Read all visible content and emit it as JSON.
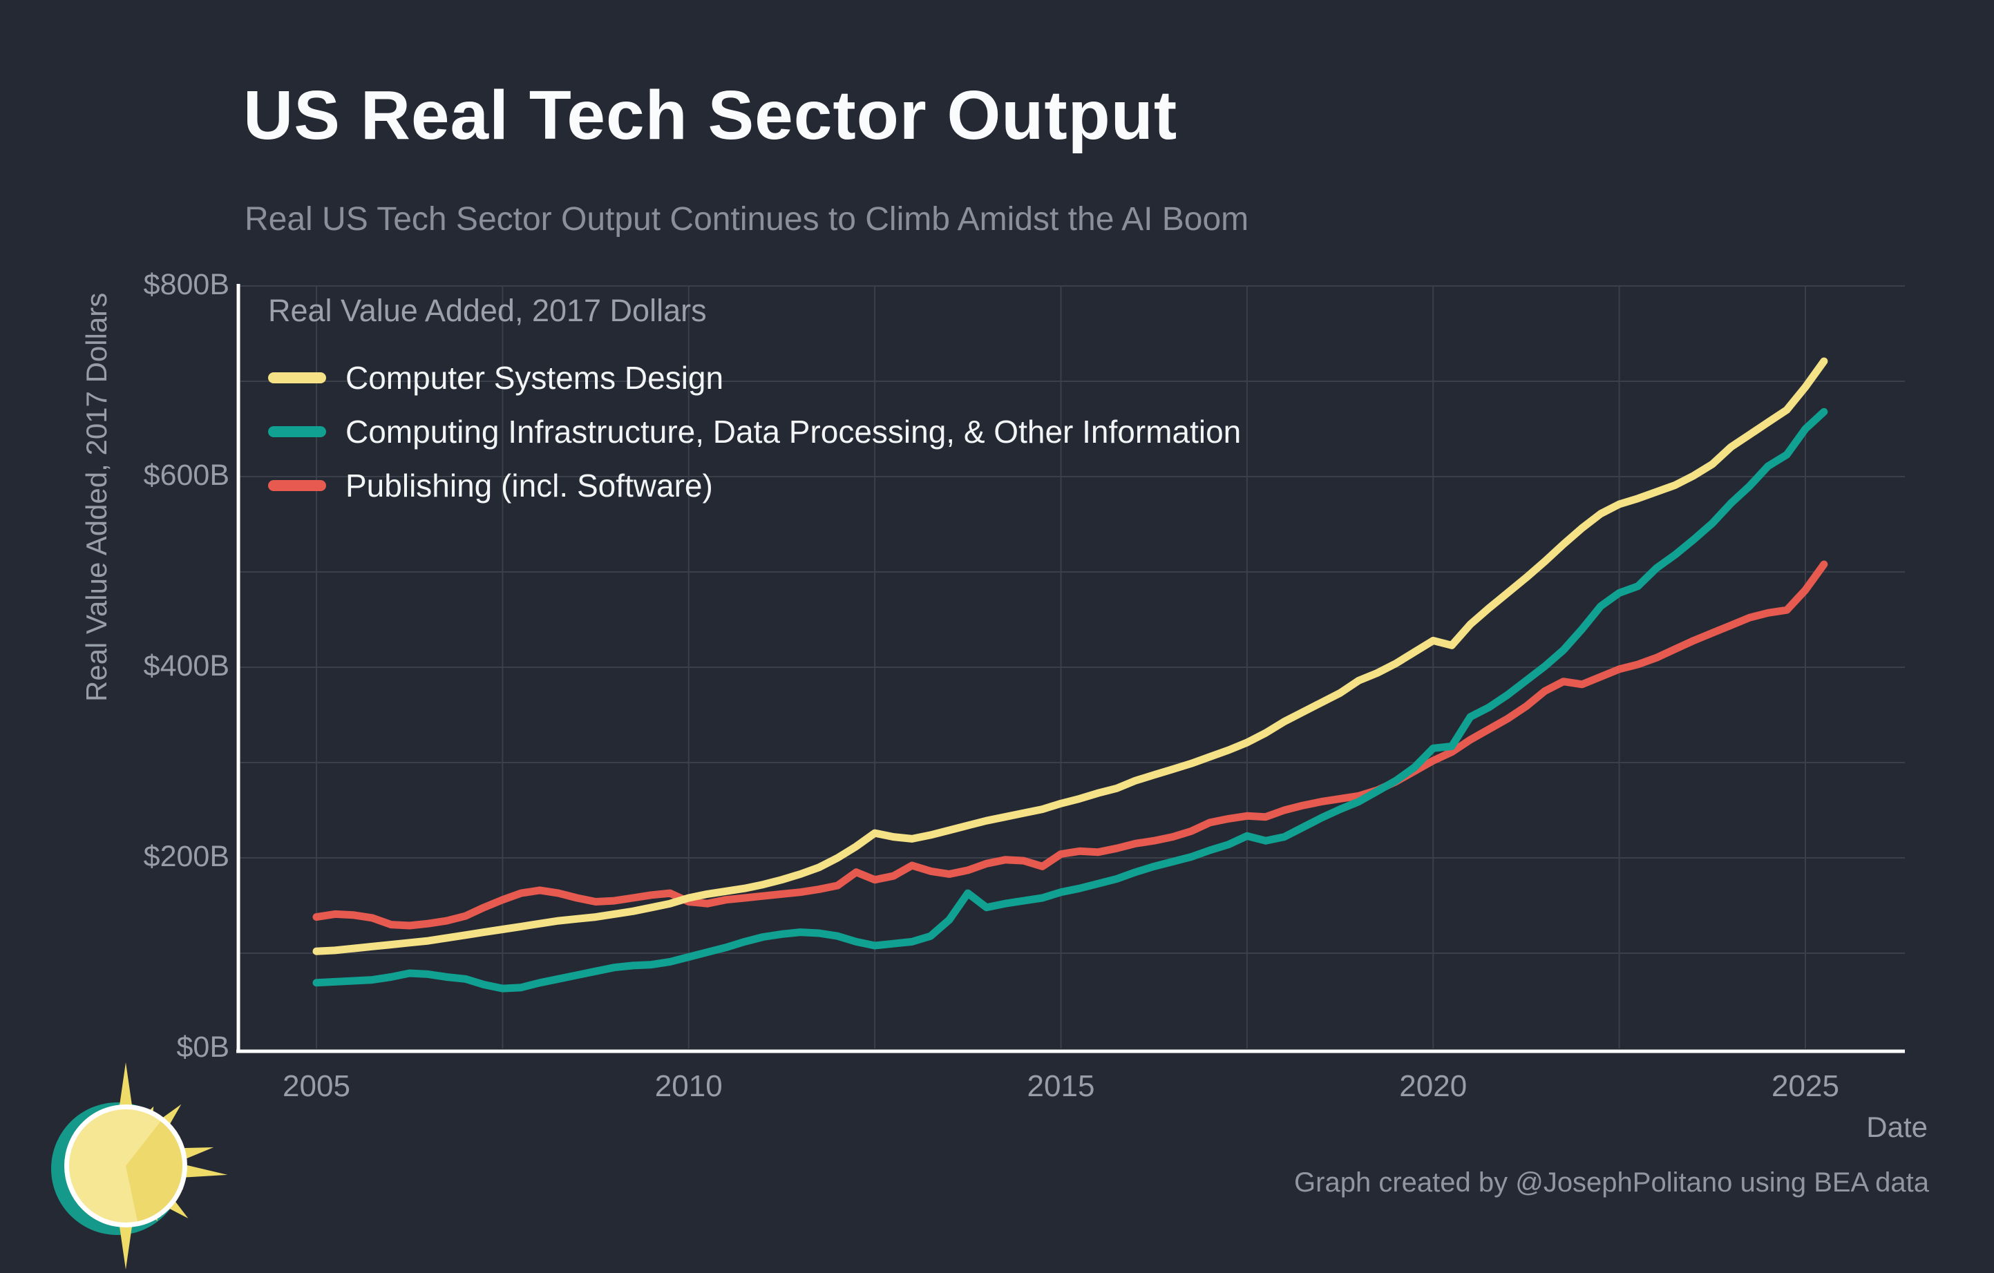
{
  "page": {
    "title": "US Real Tech Sector Output",
    "subtitle": "Real US Tech Sector Output Continues to Climb Amidst the AI Boom",
    "attribution": "Graph created by @JosephPolitano using BEA data"
  },
  "colors": {
    "bg": "#252933",
    "grid": "#3a3f49",
    "axis": "#ffffff",
    "title-color": "#fafbfc",
    "muted-text": "#989ea7",
    "legend-text": "#f2f4f6"
  },
  "logo": {
    "name": "apricitas-sun-logo",
    "crescent_color": "#15998a",
    "ray_color": "#efdb67",
    "ring_color": "#ffffff",
    "disc_color": "#f6e795",
    "wedge_color": "#edd96c"
  },
  "chart_data": {
    "type": "line",
    "title": "US Real Tech Sector Output",
    "subtitle": "Real US Tech Sector Output Continues to Climb Amidst the AI Boom",
    "legend_title": "Real Value Added, 2017 Dollars",
    "legend_position": "top-left-inside",
    "xlabel": "Date",
    "ylabel": "Real Value Added, 2017 Dollars",
    "grid": true,
    "x_start": 2005,
    "x_step": 0.25,
    "x_end": 2025.25,
    "xlim": [
      2003.95,
      2026.4
    ],
    "ylim": [
      0,
      800
    ],
    "x_ticks": [
      2005,
      2010,
      2015,
      2020,
      2025
    ],
    "x_gridlines": [
      2005,
      2007.5,
      2010,
      2012.5,
      2015,
      2017.5,
      2020,
      2022.5,
      2025
    ],
    "y_ticks": [
      {
        "value": 0,
        "label": "$0B"
      },
      {
        "value": 200,
        "label": "$200B"
      },
      {
        "value": 400,
        "label": "$400B"
      },
      {
        "value": 600,
        "label": "$600B"
      },
      {
        "value": 800,
        "label": "$800B"
      }
    ],
    "y_gridlines": [
      100,
      200,
      300,
      400,
      500,
      600,
      700,
      800
    ],
    "units": "billions of 2017 dollars, quarterly",
    "series": [
      {
        "id": "computer-systems-design",
        "name": "Computer Systems Design",
        "color": "#f5e287",
        "values": [
          102,
          103,
          105,
          107,
          109,
          111,
          113,
          116,
          119,
          122,
          125,
          128,
          131,
          134,
          136,
          138,
          141,
          144,
          148,
          152,
          158,
          162,
          165,
          168,
          172,
          177,
          183,
          190,
          200,
          212,
          226,
          222,
          220,
          224,
          229,
          234,
          239,
          243,
          247,
          251,
          257,
          262,
          268,
          273,
          281,
          287,
          293,
          299,
          306,
          313,
          321,
          331,
          343,
          353,
          363,
          373,
          386,
          394,
          404,
          416,
          428,
          423,
          445,
          462,
          478,
          494,
          511,
          529,
          546,
          561,
          571,
          577,
          584,
          591,
          601,
          613,
          631,
          644,
          657,
          670,
          694,
          721
        ]
      },
      {
        "id": "computing-infrastructure",
        "name": "Computing Infrastructure, Data Processing, & Other Information",
        "color": "#10a192",
        "values": [
          69,
          70,
          71,
          72,
          75,
          79,
          78,
          75,
          73,
          67,
          63,
          64,
          69,
          73,
          77,
          81,
          85,
          87,
          88,
          91,
          96,
          101,
          106,
          112,
          117,
          120,
          122,
          121,
          118,
          112,
          108,
          110,
          112,
          118,
          135,
          163,
          148,
          152,
          155,
          158,
          164,
          168,
          173,
          178,
          185,
          191,
          196,
          201,
          208,
          214,
          223,
          218,
          222,
          232,
          242,
          251,
          259,
          270,
          281,
          295,
          315,
          317,
          348,
          358,
          371,
          386,
          401,
          418,
          440,
          464,
          478,
          485,
          504,
          518,
          534,
          551,
          572,
          590,
          611,
          623,
          650,
          668
        ]
      },
      {
        "id": "publishing",
        "name": "Publishing (incl. Software)",
        "color": "#e65a50",
        "values": [
          138,
          141,
          140,
          137,
          130,
          129,
          131,
          134,
          139,
          148,
          156,
          163,
          166,
          163,
          158,
          154,
          155,
          158,
          161,
          163,
          154,
          152,
          156,
          158,
          160,
          162,
          164,
          167,
          171,
          185,
          177,
          181,
          192,
          186,
          183,
          187,
          194,
          198,
          197,
          191,
          204,
          207,
          206,
          210,
          215,
          218,
          222,
          228,
          237,
          241,
          244,
          243,
          250,
          255,
          259,
          262,
          265,
          271,
          280,
          291,
          302,
          311,
          324,
          335,
          346,
          359,
          375,
          385,
          382,
          390,
          398,
          403,
          410,
          419,
          428,
          436,
          444,
          452,
          457,
          460,
          481,
          508
        ]
      }
    ]
  }
}
